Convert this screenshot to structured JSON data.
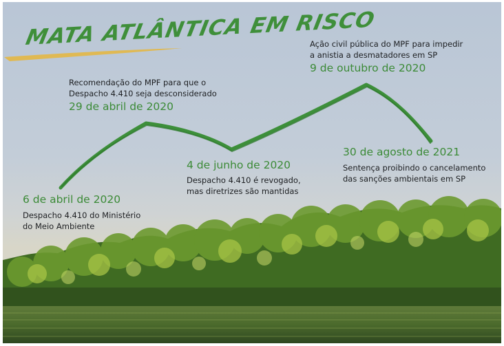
{
  "title": "MATA ATLÂNTICA EM RISCO",
  "colors": {
    "accent_green": "#3b8a36",
    "title_green": "#3f8f3a",
    "brush_yellow": "#e2b84c",
    "text_dark": "#1d1f22",
    "sky": "#bfcad7"
  },
  "events": [
    {
      "date": "6 de abril de 2020",
      "description": [
        "Despacho 4.410 do Ministério",
        "do Meio Ambiente"
      ]
    },
    {
      "date": "29 de abril de 2020",
      "description": [
        "Recomendação do MPF para que o",
        "Despacho 4.410 seja desconsiderado"
      ]
    },
    {
      "date": "4 de junho de 2020",
      "description": [
        "Despacho 4.410 é revogado,",
        "mas diretrizes são mantidas"
      ]
    },
    {
      "date": "9 de outubro de 2020",
      "description": [
        "Ação civil pública do MPF para impedir",
        "a anistia a desmatadores em SP"
      ]
    },
    {
      "date": "30 de agosto de 2021",
      "description": [
        "Sentença proibindo o cancelamento",
        "das sanções ambientais em SP"
      ]
    }
  ]
}
